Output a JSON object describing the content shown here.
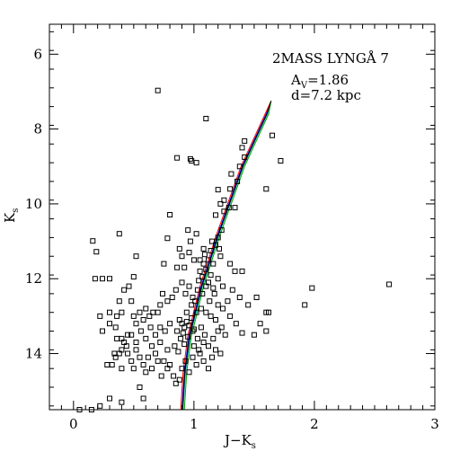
{
  "chart_data": {
    "type": "scatter",
    "title": "",
    "xlabel": {
      "main": "J−K",
      "sub": "s"
    },
    "ylabel": {
      "main": "K",
      "sub": "s"
    },
    "xlim": [
      -0.2,
      3.0
    ],
    "ylim": [
      15.5,
      5.2
    ],
    "y_inverted": true,
    "grid": false,
    "legend": "none",
    "xticks": [
      0,
      1,
      2,
      3
    ],
    "xtick_labels": [
      "0",
      "1",
      "2",
      "3"
    ],
    "yticks": [
      6,
      8,
      10,
      12,
      14
    ],
    "ytick_labels": [
      "6",
      "8",
      "10",
      "12",
      "14"
    ],
    "annotations": {
      "line1": "2MASS LYNGÅ 7",
      "line2_main": "A",
      "line2_sub": "V",
      "line2_rest": "=1.86",
      "line3": "d=7.2 kpc"
    },
    "isochrone_colors": [
      "#0000ff",
      "#00b0b0",
      "#00a000",
      "#ff0000",
      "#000000"
    ],
    "isochrones": [
      {
        "name": "",
        "color": "#0000ff",
        "points": [
          [
            0.9,
            15.5
          ],
          [
            0.92,
            14.5
          ],
          [
            0.96,
            13.5
          ],
          [
            1.0,
            13.0
          ],
          [
            1.06,
            12.2
          ],
          [
            1.12,
            11.6
          ],
          [
            1.2,
            10.8
          ],
          [
            1.3,
            9.9
          ],
          [
            1.4,
            9.0
          ],
          [
            1.5,
            8.3
          ],
          [
            1.6,
            7.6
          ],
          [
            1.64,
            7.25
          ]
        ]
      },
      {
        "name": "",
        "color": "#00b0b0",
        "points": [
          [
            0.91,
            15.5
          ],
          [
            0.93,
            14.5
          ],
          [
            0.97,
            13.5
          ],
          [
            1.01,
            13.0
          ],
          [
            1.07,
            12.2
          ],
          [
            1.13,
            11.6
          ],
          [
            1.21,
            10.8
          ],
          [
            1.31,
            9.9
          ],
          [
            1.41,
            9.0
          ],
          [
            1.51,
            8.3
          ],
          [
            1.61,
            7.6
          ],
          [
            1.64,
            7.25
          ]
        ]
      },
      {
        "name": "",
        "color": "#00a000",
        "points": [
          [
            0.92,
            15.5
          ],
          [
            0.94,
            14.5
          ],
          [
            0.98,
            13.5
          ],
          [
            1.02,
            13.0
          ],
          [
            1.08,
            12.2
          ],
          [
            1.14,
            11.6
          ],
          [
            1.22,
            10.8
          ],
          [
            1.32,
            9.9
          ],
          [
            1.42,
            9.0
          ],
          [
            1.52,
            8.3
          ],
          [
            1.62,
            7.6
          ],
          [
            1.64,
            7.25
          ]
        ]
      },
      {
        "name": "",
        "color": "#ff0000",
        "points": [
          [
            0.89,
            15.5
          ],
          [
            0.91,
            14.5
          ],
          [
            0.95,
            13.5
          ],
          [
            0.99,
            13.0
          ],
          [
            1.05,
            12.2
          ],
          [
            1.11,
            11.6
          ],
          [
            1.19,
            10.8
          ],
          [
            1.29,
            9.9
          ],
          [
            1.39,
            9.0
          ],
          [
            1.49,
            8.3
          ],
          [
            1.59,
            7.6
          ],
          [
            1.64,
            7.25
          ]
        ]
      },
      {
        "name": "",
        "color": "#000000",
        "points": [
          [
            0.905,
            15.5
          ],
          [
            0.925,
            14.5
          ],
          [
            0.965,
            13.5
          ],
          [
            1.005,
            13.0
          ],
          [
            1.065,
            12.2
          ],
          [
            1.125,
            11.6
          ],
          [
            1.205,
            10.8
          ],
          [
            1.305,
            9.9
          ],
          [
            1.405,
            9.0
          ],
          [
            1.505,
            8.3
          ],
          [
            1.605,
            7.6
          ],
          [
            1.64,
            7.25
          ]
        ]
      }
    ],
    "points": [
      [
        0.7,
        6.97
      ],
      [
        1.42,
        8.32
      ],
      [
        1.65,
        8.17
      ],
      [
        1.72,
        8.85
      ],
      [
        1.1,
        7.72
      ],
      [
        0.86,
        8.77
      ],
      [
        0.98,
        8.85
      ],
      [
        1.02,
        8.9
      ],
      [
        0.97,
        8.8
      ],
      [
        1.4,
        8.5
      ],
      [
        1.42,
        8.75
      ],
      [
        1.6,
        9.6
      ],
      [
        1.2,
        9.62
      ],
      [
        1.31,
        9.2
      ],
      [
        1.38,
        9.0
      ],
      [
        1.3,
        9.6
      ],
      [
        1.36,
        9.4
      ],
      [
        1.25,
        9.9
      ],
      [
        1.29,
        10.1
      ],
      [
        1.34,
        10.1
      ],
      [
        1.22,
        10.0
      ],
      [
        1.18,
        10.3
      ],
      [
        1.25,
        10.2
      ],
      [
        0.8,
        10.29
      ],
      [
        1.23,
        10.7
      ],
      [
        1.2,
        10.9
      ],
      [
        1.15,
        11.0
      ],
      [
        0.95,
        10.7
      ],
      [
        0.97,
        11.0
      ],
      [
        1.02,
        10.8
      ],
      [
        0.78,
        10.92
      ],
      [
        0.96,
        11.3
      ],
      [
        0.88,
        11.2
      ],
      [
        1.08,
        11.2
      ],
      [
        0.9,
        11.4
      ],
      [
        0.92,
        11.7
      ],
      [
        0.86,
        11.7
      ],
      [
        0.75,
        11.6
      ],
      [
        1.0,
        11.5
      ],
      [
        1.05,
        11.5
      ],
      [
        1.08,
        11.6
      ],
      [
        1.12,
        11.5
      ],
      [
        1.16,
        11.6
      ],
      [
        1.22,
        11.4
      ],
      [
        1.3,
        11.6
      ],
      [
        1.34,
        11.8
      ],
      [
        1.4,
        11.8
      ],
      [
        1.05,
        11.8
      ],
      [
        1.1,
        11.75
      ],
      [
        1.14,
        11.9
      ],
      [
        1.2,
        12.0
      ],
      [
        1.24,
        12.2
      ],
      [
        1.32,
        12.3
      ],
      [
        1.38,
        12.5
      ],
      [
        1.45,
        12.7
      ],
      [
        1.52,
        12.5
      ],
      [
        1.62,
        12.9
      ],
      [
        1.55,
        13.2
      ],
      [
        1.6,
        13.4
      ],
      [
        1.5,
        13.5
      ],
      [
        1.4,
        13.45
      ],
      [
        1.35,
        13.2
      ],
      [
        1.3,
        13.0
      ],
      [
        0.16,
        10.99
      ],
      [
        0.19,
        11.28
      ],
      [
        0.38,
        10.8
      ],
      [
        0.18,
        12.0
      ],
      [
        0.24,
        12.0
      ],
      [
        0.3,
        12.0
      ],
      [
        0.42,
        12.3
      ],
      [
        0.46,
        12.2
      ],
      [
        0.5,
        11.95
      ],
      [
        0.52,
        11.4
      ],
      [
        0.48,
        12.6
      ],
      [
        0.38,
        12.6
      ],
      [
        0.4,
        12.9
      ],
      [
        0.3,
        12.9
      ],
      [
        0.36,
        13.0
      ],
      [
        0.22,
        13.0
      ],
      [
        0.24,
        13.4
      ],
      [
        0.3,
        13.2
      ],
      [
        0.35,
        13.3
      ],
      [
        0.4,
        13.6
      ],
      [
        0.42,
        13.7
      ],
      [
        0.45,
        13.5
      ],
      [
        0.5,
        13.0
      ],
      [
        0.52,
        13.2
      ],
      [
        0.55,
        12.9
      ],
      [
        0.58,
        13.1
      ],
      [
        0.6,
        12.8
      ],
      [
        0.63,
        13.0
      ],
      [
        0.66,
        12.9
      ],
      [
        0.7,
        12.9
      ],
      [
        0.72,
        12.7
      ],
      [
        0.74,
        12.4
      ],
      [
        0.78,
        12.6
      ],
      [
        0.82,
        12.5
      ],
      [
        0.85,
        12.3
      ],
      [
        0.9,
        12.1
      ],
      [
        0.93,
        12.4
      ],
      [
        0.96,
        12.2
      ],
      [
        0.99,
        12.5
      ],
      [
        1.03,
        12.3
      ],
      [
        1.07,
        12.4
      ],
      [
        1.1,
        12.2
      ],
      [
        1.13,
        12.6
      ],
      [
        1.17,
        12.4
      ],
      [
        1.2,
        12.7
      ],
      [
        1.24,
        12.8
      ],
      [
        1.28,
        12.6
      ],
      [
        0.28,
        14.3
      ],
      [
        0.32,
        14.3
      ],
      [
        0.35,
        14.1
      ],
      [
        0.38,
        14.0
      ],
      [
        0.4,
        14.4
      ],
      [
        0.45,
        14.0
      ],
      [
        0.48,
        14.2
      ],
      [
        0.5,
        14.4
      ],
      [
        0.52,
        13.9
      ],
      [
        0.55,
        14.1
      ],
      [
        0.58,
        14.3
      ],
      [
        0.6,
        14.5
      ],
      [
        0.62,
        14.1
      ],
      [
        0.65,
        13.8
      ],
      [
        0.68,
        14.0
      ],
      [
        0.72,
        13.7
      ],
      [
        0.75,
        14.2
      ],
      [
        0.78,
        13.9
      ],
      [
        0.8,
        14.3
      ],
      [
        0.83,
        14.6
      ],
      [
        0.85,
        14.8
      ],
      [
        0.88,
        14.7
      ],
      [
        0.9,
        14.4
      ],
      [
        0.93,
        14.2
      ],
      [
        0.96,
        14.5
      ],
      [
        0.99,
        14.1
      ],
      [
        1.02,
        14.3
      ],
      [
        1.05,
        14.0
      ],
      [
        1.08,
        14.2
      ],
      [
        1.12,
        14.4
      ],
      [
        1.15,
        14.1
      ],
      [
        1.18,
        13.9
      ],
      [
        1.22,
        14.0
      ],
      [
        0.55,
        14.9
      ],
      [
        0.58,
        15.2
      ],
      [
        0.4,
        15.3
      ],
      [
        0.3,
        15.2
      ],
      [
        0.22,
        15.4
      ],
      [
        0.15,
        15.5
      ],
      [
        0.05,
        15.5
      ],
      [
        1.92,
        12.7
      ],
      [
        1.98,
        12.25
      ],
      [
        2.62,
        12.15
      ],
      [
        1.6,
        12.9
      ],
      [
        0.88,
        13.1
      ],
      [
        0.9,
        13.2
      ],
      [
        0.92,
        13.3
      ],
      [
        0.94,
        13.15
      ],
      [
        0.96,
        13.25
      ],
      [
        0.98,
        13.05
      ],
      [
        1.0,
        13.35
      ],
      [
        0.91,
        13.45
      ],
      [
        0.95,
        13.55
      ],
      [
        0.99,
        13.4
      ],
      [
        1.03,
        13.6
      ],
      [
        1.06,
        13.3
      ],
      [
        1.09,
        13.5
      ],
      [
        0.89,
        13.6
      ],
      [
        0.86,
        13.4
      ],
      [
        0.84,
        13.8
      ],
      [
        0.87,
        13.95
      ],
      [
        0.92,
        13.75
      ],
      [
        1.0,
        13.8
      ],
      [
        1.04,
        13.9
      ],
      [
        1.08,
        13.7
      ],
      [
        1.12,
        13.8
      ],
      [
        1.16,
        13.6
      ],
      [
        1.2,
        13.4
      ],
      [
        1.23,
        13.3
      ],
      [
        1.26,
        13.5
      ],
      [
        0.8,
        13.2
      ],
      [
        0.76,
        13.4
      ],
      [
        0.72,
        13.3
      ],
      [
        0.68,
        13.5
      ],
      [
        0.64,
        13.3
      ],
      [
        0.6,
        13.6
      ],
      [
        0.56,
        13.4
      ],
      [
        0.52,
        13.7
      ],
      [
        0.48,
        13.5
      ],
      [
        0.44,
        13.8
      ],
      [
        0.4,
        13.9
      ],
      [
        0.36,
        13.6
      ],
      [
        0.34,
        14.0
      ],
      [
        0.65,
        14.4
      ],
      [
        0.7,
        14.2
      ],
      [
        0.73,
        14.6
      ],
      [
        0.78,
        14.4
      ],
      [
        1.02,
        12.9
      ],
      [
        1.06,
        12.8
      ],
      [
        1.1,
        12.9
      ],
      [
        1.14,
        13.0
      ],
      [
        1.18,
        13.1
      ],
      [
        0.98,
        12.7
      ],
      [
        0.94,
        12.9
      ],
      [
        1.01,
        12.6
      ],
      [
        1.04,
        12.05
      ],
      [
        1.07,
        11.95
      ],
      [
        1.12,
        12.1
      ],
      [
        1.16,
        12.25
      ],
      [
        1.09,
        11.35
      ],
      [
        1.14,
        11.25
      ],
      [
        1.18,
        11.1
      ],
      [
        1.21,
        11.2
      ]
    ]
  }
}
